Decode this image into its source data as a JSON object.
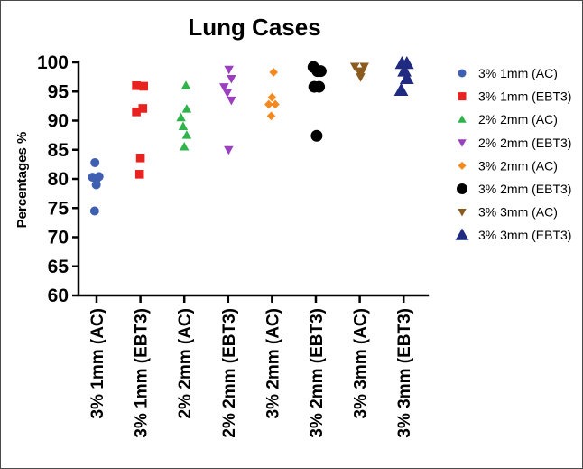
{
  "chart_data": {
    "type": "scatter",
    "title": "Lung Cases",
    "ylabel": "Percentages %",
    "xlabel": "",
    "ylim": [
      60,
      100
    ],
    "yticks": [
      60,
      65,
      70,
      75,
      80,
      85,
      90,
      95,
      100
    ],
    "grid": false,
    "legend_position": "right",
    "categories": [
      "3% 1mm (AC)",
      "3% 1mm (EBT3)",
      "2% 2mm (AC)",
      "2% 2mm (EBT3)",
      "3% 2mm (AC)",
      "3% 2mm (EBT3)",
      "3% 3mm (AC)",
      "3% 3mm (EBT3)"
    ],
    "series": [
      {
        "name": "3% 1mm (AC)",
        "marker": "circle",
        "color": "#3f5fb0",
        "points": [
          [
            -0.1,
            82.8
          ],
          [
            -0.25,
            80.3
          ],
          [
            0.0,
            80.0
          ],
          [
            0.15,
            80.4
          ],
          [
            -0.02,
            79.0
          ],
          [
            -0.12,
            74.5
          ]
        ]
      },
      {
        "name": "3% 1mm (EBT3)",
        "marker": "square",
        "color": "#e8221f",
        "points": [
          [
            -0.25,
            96.0
          ],
          [
            0.2,
            95.9
          ],
          [
            0.15,
            92.1
          ],
          [
            -0.25,
            91.5
          ],
          [
            0.0,
            83.6
          ],
          [
            -0.05,
            80.8
          ]
        ]
      },
      {
        "name": "2% 2mm (AC)",
        "marker": "triangle-up",
        "color": "#2fb34a",
        "points": [
          [
            0.1,
            96.0
          ],
          [
            0.15,
            92.0
          ],
          [
            -0.2,
            90.5
          ],
          [
            -0.07,
            89.0
          ],
          [
            0.15,
            87.5
          ],
          [
            0.0,
            85.5
          ]
        ]
      },
      {
        "name": "2% 2mm (EBT3)",
        "marker": "triangle-down",
        "color": "#9b3fc0",
        "points": [
          [
            0.05,
            98.8
          ],
          [
            0.2,
            97.2
          ],
          [
            -0.25,
            95.8
          ],
          [
            -0.05,
            94.8
          ],
          [
            0.2,
            93.5
          ],
          [
            0.03,
            85.0
          ]
        ]
      },
      {
        "name": "3% 2mm (AC)",
        "marker": "diamond",
        "color": "#f28a21",
        "points": [
          [
            0.1,
            98.3
          ],
          [
            0.0,
            94.0
          ],
          [
            -0.2,
            92.8
          ],
          [
            0.2,
            92.8
          ],
          [
            -0.05,
            90.8
          ]
        ]
      },
      {
        "name": "3% 2mm (EBT3)",
        "marker": "circle",
        "color": "#000000",
        "points": [
          [
            -0.15,
            99.2
          ],
          [
            0.1,
            98.5
          ],
          [
            0.3,
            98.5
          ],
          [
            -0.1,
            95.8
          ],
          [
            0.2,
            95.8
          ],
          [
            0.05,
            87.4
          ]
        ]
      },
      {
        "name": "3% 3mm (AC)",
        "marker": "triangle-down",
        "color": "#8b5a1f",
        "points": [
          [
            -0.3,
            99.3
          ],
          [
            0.28,
            99.3
          ],
          [
            -0.05,
            98.5
          ],
          [
            0.15,
            98.5
          ],
          [
            0.05,
            97.5
          ]
        ]
      },
      {
        "name": "3% 3mm (EBT3)",
        "marker": "triangle-up",
        "color": "#1f2a80",
        "points": [
          [
            -0.1,
            99.8
          ],
          [
            0.2,
            99.8
          ],
          [
            0.05,
            98.5
          ],
          [
            0.2,
            97.2
          ],
          [
            -0.15,
            95.2
          ]
        ]
      }
    ]
  }
}
